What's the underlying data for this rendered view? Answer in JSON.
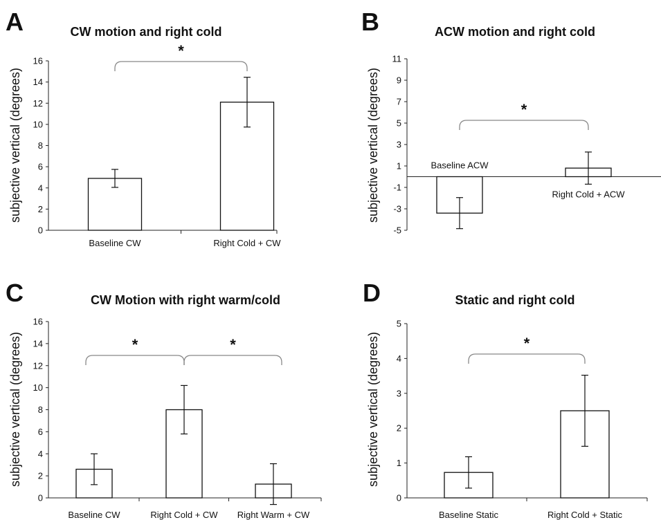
{
  "figure": {
    "panels": [
      {
        "letter": "A",
        "title": "CW motion and right cold",
        "ylabel": "subjective vertical (degrees)"
      },
      {
        "letter": "B",
        "title": "ACW motion and right cold",
        "ylabel": "subjective vertical (degrees)"
      },
      {
        "letter": "C",
        "title": "CW Motion with right warm/cold",
        "ylabel": "subjective vertical (degrees)"
      },
      {
        "letter": "D",
        "title": "Static and right cold",
        "ylabel": "subjective vertical (degrees)"
      }
    ]
  },
  "chart_data": [
    {
      "type": "bar",
      "panel": "A",
      "title": "CW motion and right cold",
      "xlabel": "",
      "ylabel": "subjective vertical (degrees)",
      "categories": [
        "Baseline CW",
        "Right Cold + CW"
      ],
      "values": [
        4.9,
        12.1
      ],
      "errors": [
        0.85,
        2.35
      ],
      "ylim": [
        0,
        16
      ],
      "yticks": [
        0,
        2,
        4,
        6,
        8,
        10,
        12,
        14,
        16
      ],
      "significance": [
        {
          "pair": [
            0,
            1
          ],
          "label": "*"
        }
      ],
      "grid": false,
      "legend": "none"
    },
    {
      "type": "bar",
      "panel": "B",
      "title": "ACW motion and right cold",
      "xlabel": "",
      "ylabel": "subjective vertical (degrees)",
      "categories": [
        "Baseline ACW",
        "Right Cold + ACW"
      ],
      "values": [
        -3.4,
        0.8
      ],
      "errors": [
        1.45,
        1.5
      ],
      "ylim": [
        -5,
        11
      ],
      "yticks": [
        -5,
        -3,
        -1,
        1,
        3,
        5,
        7,
        9,
        11
      ],
      "significance": [
        {
          "pair": [
            0,
            1
          ],
          "label": "*"
        }
      ],
      "grid": false,
      "legend": "none"
    },
    {
      "type": "bar",
      "panel": "C",
      "title": "CW Motion with right warm/cold",
      "xlabel": "",
      "ylabel": "subjective vertical (degrees)",
      "categories": [
        "Baseline CW",
        "Right Cold + CW",
        "Right Warm + CW"
      ],
      "values": [
        2.6,
        8.0,
        1.25
      ],
      "errors": [
        1.4,
        2.2,
        1.85
      ],
      "ylim": [
        0,
        16
      ],
      "yticks": [
        0,
        2,
        4,
        6,
        8,
        10,
        12,
        14,
        16
      ],
      "significance": [
        {
          "pair": [
            0,
            1
          ],
          "label": "*"
        },
        {
          "pair": [
            1,
            2
          ],
          "label": "*"
        }
      ],
      "grid": false,
      "legend": "none"
    },
    {
      "type": "bar",
      "panel": "D",
      "title": "Static and right cold",
      "xlabel": "",
      "ylabel": "subjective vertical (degrees)",
      "categories": [
        "Baseline Static",
        "Right Cold + Static"
      ],
      "values": [
        0.73,
        2.5
      ],
      "errors": [
        0.45,
        1.02
      ],
      "ylim": [
        0,
        5
      ],
      "yticks": [
        0,
        1,
        2,
        3,
        4,
        5
      ],
      "significance": [
        {
          "pair": [
            0,
            1
          ],
          "label": "*"
        }
      ],
      "grid": false,
      "legend": "none"
    }
  ]
}
